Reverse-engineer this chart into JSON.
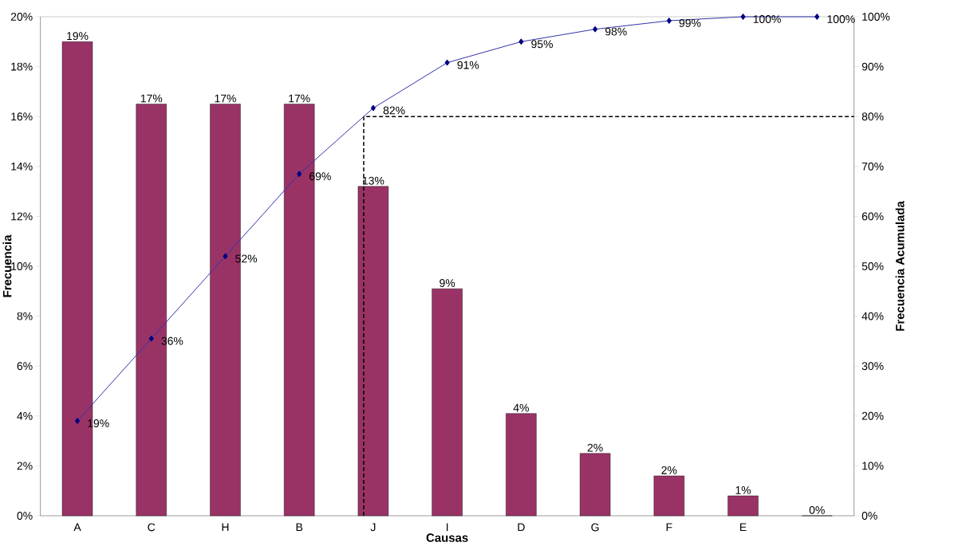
{
  "chart_data": {
    "type": "bar",
    "xlabel": "Causas",
    "ylabel": "Frecuencia",
    "y2label": "Frecuencia Acumulada",
    "categories": [
      "A",
      "C",
      "H",
      "B",
      "J",
      "I",
      "D",
      "G",
      "F",
      "E",
      null
    ],
    "ylim": [
      0,
      20
    ],
    "yticks": [
      {
        "value": 0,
        "label": "0%"
      },
      {
        "value": 2,
        "label": "2%"
      },
      {
        "value": 4,
        "label": "4%"
      },
      {
        "value": 6,
        "label": "6%"
      },
      {
        "value": 8,
        "label": "8%"
      },
      {
        "value": 10,
        "label": "10%"
      },
      {
        "value": 12,
        "label": "12%"
      },
      {
        "value": 14,
        "label": "14%"
      },
      {
        "value": 16,
        "label": "16%"
      },
      {
        "value": 18,
        "label": "18%"
      },
      {
        "value": 20,
        "label": "20%"
      }
    ],
    "y2lim": [
      0,
      100
    ],
    "y2ticks": [
      {
        "value": 0,
        "label": "0%"
      },
      {
        "value": 10,
        "label": "10%"
      },
      {
        "value": 20,
        "label": "20%"
      },
      {
        "value": 30,
        "label": "30%"
      },
      {
        "value": 40,
        "label": "40%"
      },
      {
        "value": 50,
        "label": "50%"
      },
      {
        "value": 60,
        "label": "60%"
      },
      {
        "value": 70,
        "label": "70%"
      },
      {
        "value": 80,
        "label": "80%"
      },
      {
        "value": 90,
        "label": "90%"
      },
      {
        "value": 100,
        "label": "100%"
      }
    ],
    "series": [
      {
        "color": "#993366",
        "values": [
          19,
          16.5,
          16.5,
          16.5,
          13.2,
          9.1,
          4.1,
          2.5,
          1.6,
          0.8,
          0
        ],
        "value_labels": [
          "19%",
          "17%",
          "17%",
          "17%",
          "13%",
          "9%",
          "4%",
          "2%",
          "2%",
          "1%",
          "0%"
        ]
      },
      {
        "type": "line",
        "axis": "y2",
        "color": "#3333aa",
        "marker": "diamond",
        "values": [
          19,
          35.5,
          52,
          68.5,
          81.7,
          90.8,
          95,
          97.5,
          99.2,
          100,
          100
        ],
        "value_labels": [
          "19%",
          "36%",
          "52%",
          "69%",
          "82%",
          "91%",
          "95%",
          "98%",
          "99%",
          "100%",
          "100%"
        ]
      }
    ],
    "ref_lines": [
      {
        "axis": "y2",
        "value": 80,
        "color": "#000000",
        "line_style": "dashed"
      }
    ]
  }
}
